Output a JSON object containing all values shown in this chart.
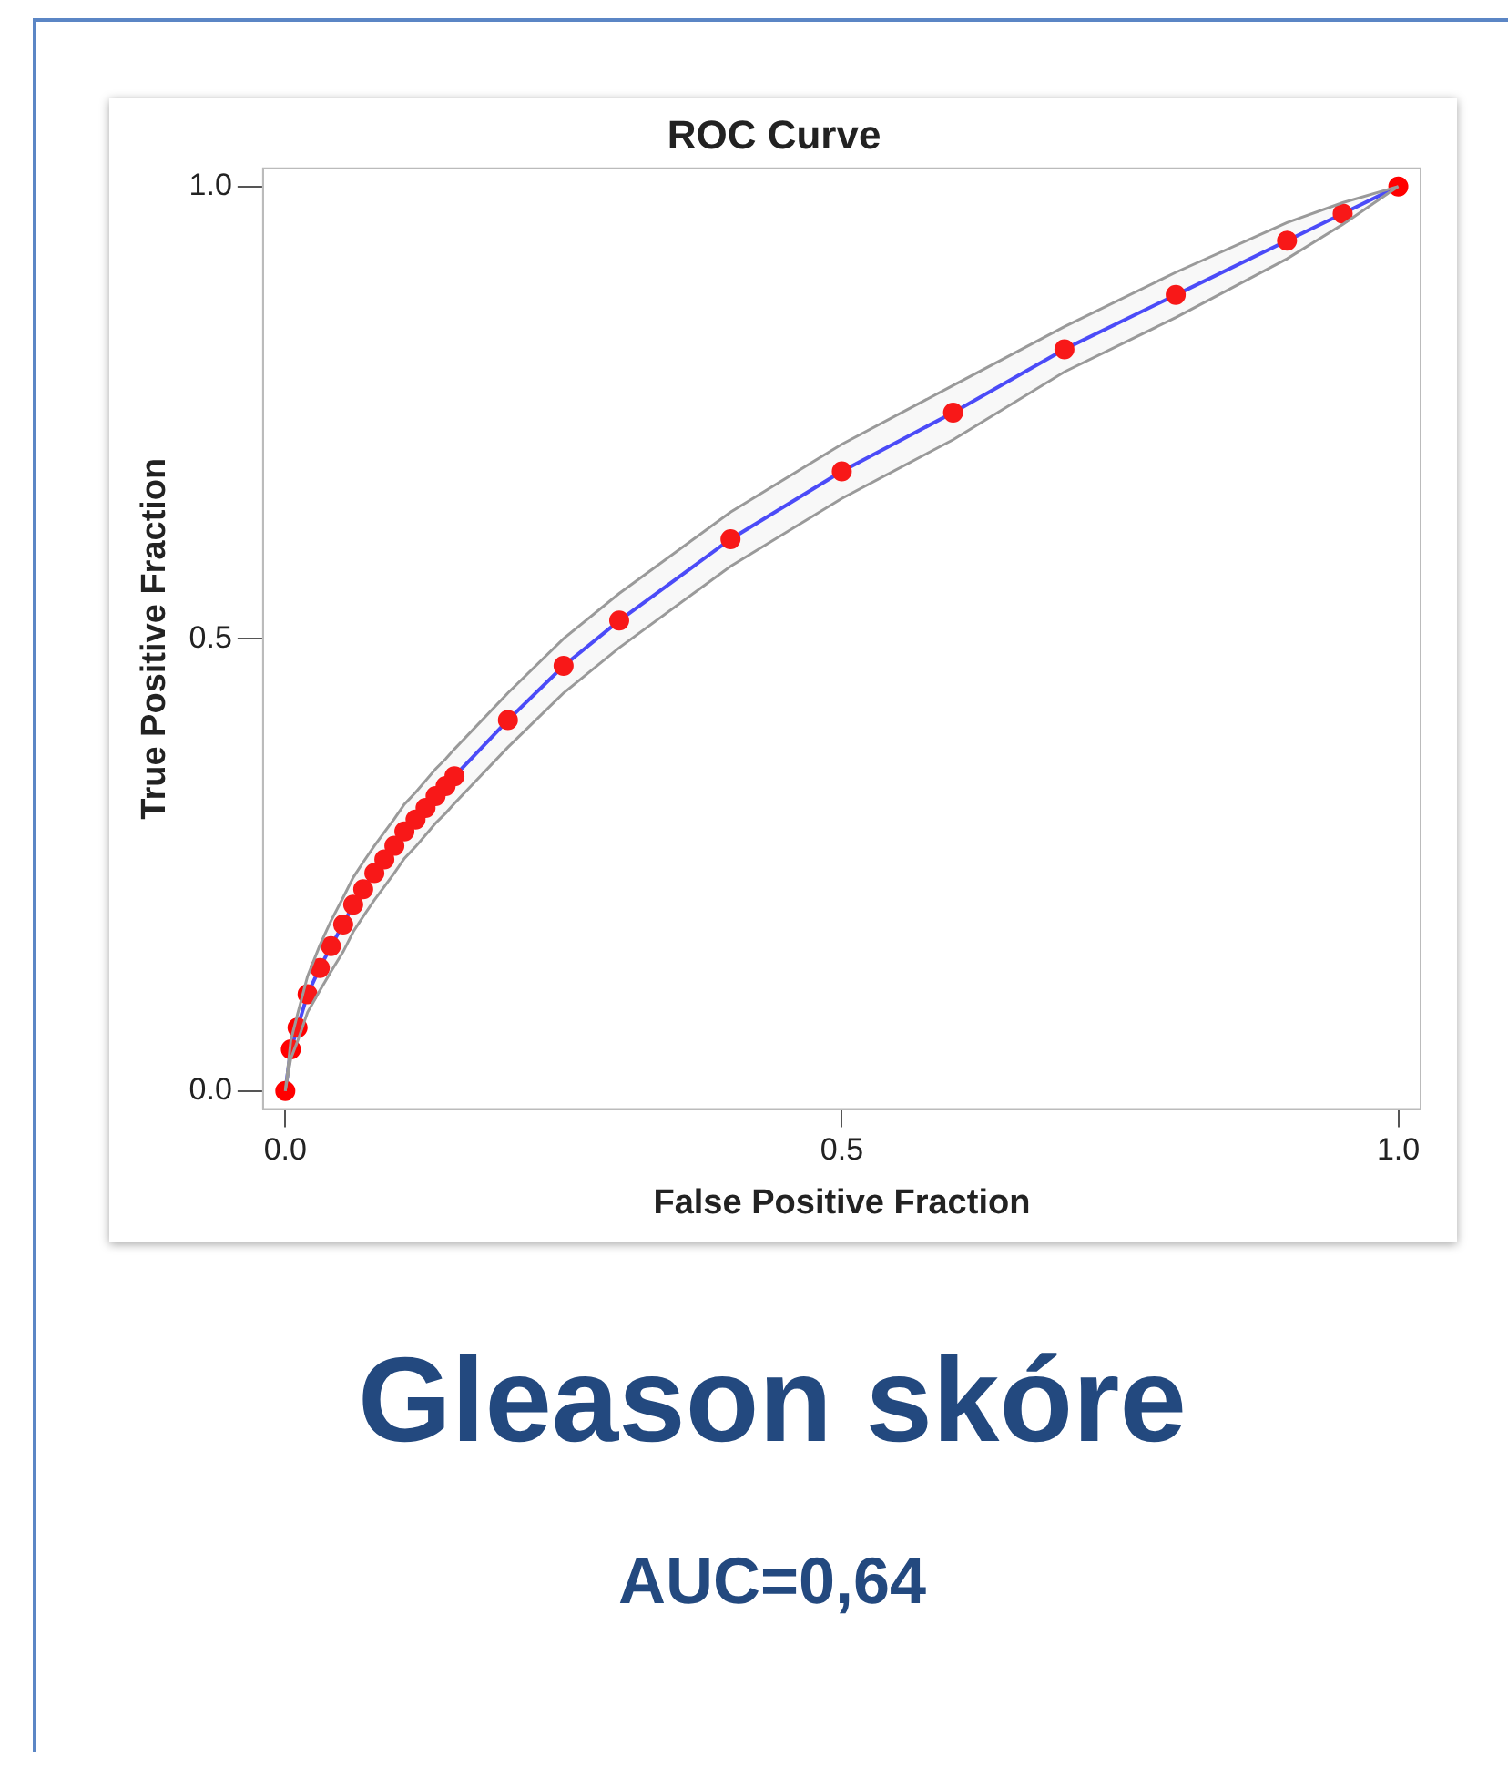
{
  "chart_data": {
    "type": "line",
    "title": "ROC Curve",
    "subtitle": "Gleason skóre",
    "annotations": [
      "AUC=0,64"
    ],
    "xlabel": "False Positive Fraction",
    "ylabel": "True Positive Fraction",
    "xlim": [
      -0.02,
      1.02
    ],
    "ylim": [
      -0.02,
      1.02
    ],
    "xticks": [
      {
        "value": 0,
        "label": "0.0"
      },
      {
        "value": 0.5,
        "label": "0.5"
      },
      {
        "value": 1,
        "label": "1.0"
      }
    ],
    "yticks": [
      {
        "value": 0,
        "label": "0.0"
      },
      {
        "value": 0.5,
        "label": "0.5"
      },
      {
        "value": 1,
        "label": "1.0"
      }
    ],
    "grid": false,
    "legend": false,
    "marker": "circle",
    "line_style": "solid",
    "series": [
      {
        "color": "#3b3bff",
        "colors": [
          "#ff0000",
          "#ff0000",
          "#ff0000",
          "#ff0000",
          "#ff0000",
          "#ff0000",
          "#ff0000",
          "#ff0000",
          "#ff0000",
          "#ff0000",
          "#ff0000",
          "#ff0000",
          "#ff0000",
          "#ff0000",
          "#ff0000",
          "#ff0000",
          "#ff0000",
          "#ff0000",
          "#ff0000",
          "#ff0000",
          "#ff0000",
          "#ff0000",
          "#ff0000",
          "#ff0000",
          "#ff0000",
          "#ff0000",
          "#ff0000",
          "#ff0000",
          "#ff0000"
        ],
        "x": [
          0,
          0.005,
          0.011,
          0.02,
          0.031,
          0.041,
          0.052,
          0.061,
          0.07,
          0.08,
          0.089,
          0.098,
          0.107,
          0.117,
          0.126,
          0.135,
          0.144,
          0.152,
          0.2,
          0.25,
          0.3,
          0.4,
          0.5,
          0.6,
          0.7,
          0.8,
          0.9,
          0.95,
          1
        ],
        "values": [
          0,
          0.046,
          0.07,
          0.107,
          0.136,
          0.16,
          0.184,
          0.206,
          0.223,
          0.241,
          0.256,
          0.271,
          0.287,
          0.3,
          0.313,
          0.326,
          0.337,
          0.348,
          0.41,
          0.47,
          0.52,
          0.61,
          0.685,
          0.75,
          0.82,
          0.88,
          0.94,
          0.97,
          1
        ],
        "lower": [
          0,
          0.036,
          0.055,
          0.087,
          0.111,
          0.132,
          0.154,
          0.176,
          0.193,
          0.211,
          0.226,
          0.241,
          0.257,
          0.27,
          0.283,
          0.296,
          0.307,
          0.318,
          0.38,
          0.44,
          0.49,
          0.58,
          0.655,
          0.72,
          0.795,
          0.855,
          0.92,
          0.958,
          1
        ],
        "upper": [
          0,
          0.056,
          0.085,
          0.127,
          0.161,
          0.188,
          0.214,
          0.236,
          0.253,
          0.271,
          0.286,
          0.301,
          0.317,
          0.33,
          0.343,
          0.356,
          0.367,
          0.378,
          0.44,
          0.5,
          0.55,
          0.64,
          0.715,
          0.78,
          0.845,
          0.905,
          0.96,
          0.982,
          1
        ]
      }
    ]
  }
}
